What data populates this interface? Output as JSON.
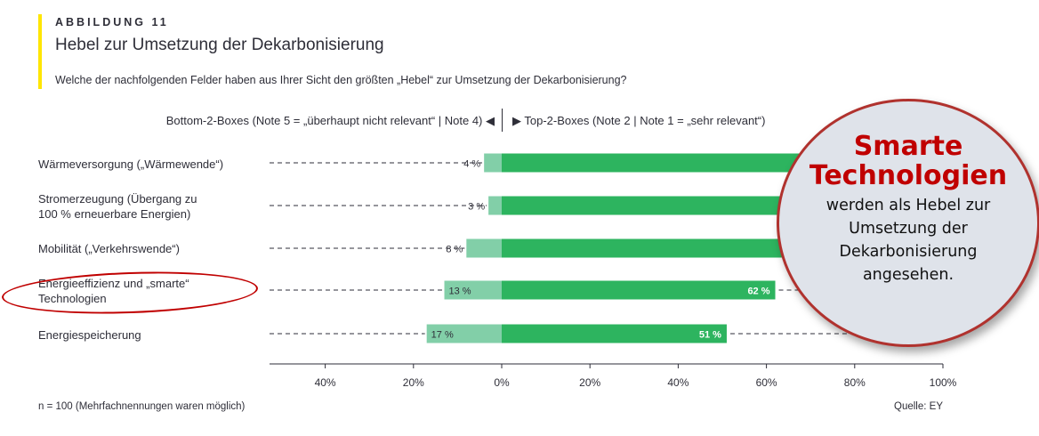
{
  "figure": {
    "label": "ABBILDUNG 11",
    "title": "Hebel zur Umsetzung der Dekarbonisierung",
    "question": "Welche der nachfolgenden Felder haben aus Ihrer Sicht den größten „Hebel“ zur Umsetzung der Dekarbonisierung?",
    "header_left": "Bottom-2-Boxes (Note 5 = „überhaupt nicht relevant“ | Note 4) ◀",
    "header_right": "▶ Top-2-Boxes (Note 2 | Note 1 = „sehr relevant“)",
    "footnote": "n = 100 (Mehrfachnennungen waren möglich)",
    "source": "Quelle: EY"
  },
  "callout": {
    "heading_line1": "Smarte",
    "heading_line2": "Technologien",
    "body": "werden als Hebel zur\nUmsetzung der\nDekarbonisierung\nangesehen."
  },
  "colors": {
    "top2": "#2db45f",
    "bottom2": "#82cfa8",
    "accent": "#ffe600",
    "highlight": "#c00000"
  },
  "chart_data": {
    "type": "bar",
    "orientation": "horizontal-diverging",
    "categories": [
      "Wärmeversorgung („Wärmewende“)",
      "Stromerzeugung (Übergang zu\n100 % erneuerbare Energien)",
      "Mobilität („Verkehrswende“)",
      "Energieeffizienz und „smarte“\nTechnologien",
      "Energiespeicherung"
    ],
    "series": [
      {
        "name": "Bottom-2-Boxes",
        "values": [
          4,
          3,
          8,
          13,
          17
        ],
        "labels": [
          "4 %",
          "3 %",
          "8 %",
          "13 %",
          "17 %"
        ]
      },
      {
        "name": "Top-2-Boxes",
        "values": [
          null,
          null,
          null,
          62,
          51
        ],
        "labels": [
          "",
          "",
          "",
          "62 %",
          "51 %"
        ]
      }
    ],
    "note": "Top-2-Box bars of the first three rows are partly hidden by the callout.",
    "xlim": [
      -52,
      100
    ],
    "x_ticks": [
      -40,
      -20,
      0,
      20,
      40,
      60,
      80,
      100
    ],
    "x_tick_labels": [
      "40%",
      "20%",
      "0%",
      "20%",
      "40%",
      "60%",
      "80%",
      "100%"
    ]
  }
}
